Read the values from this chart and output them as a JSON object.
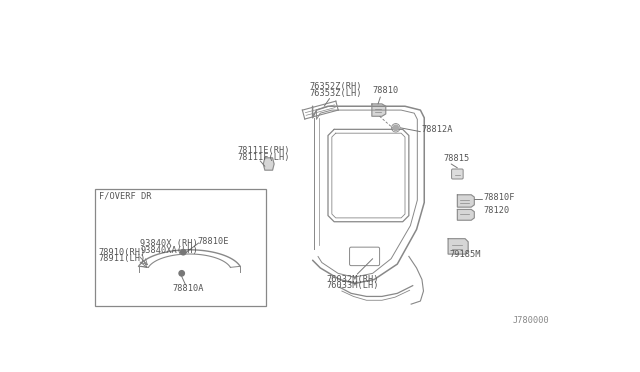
{
  "bg_color": "#ffffff",
  "diagram_number": "J780000",
  "text_color": "#555555",
  "line_color": "#777777",
  "part_color": "#888888",
  "labels": {
    "76352Z_RH": "76352Z(RH)",
    "76353Z_LH": "76353Z(LH)",
    "78810": "78810",
    "78812A": "78812A",
    "78815": "78815",
    "78810F": "78810F",
    "78120": "78120",
    "79185M": "79185M",
    "76032M_RH": "76032M(RH)",
    "76033M_LH": "76033M(LH)",
    "78111E_RH": "78111E(RH)",
    "78111F_LH": "78111F(LH)",
    "78810E": "78810E",
    "78910_RH": "78910(RH)",
    "78911_LH": "78911(LH)",
    "93840X_RH": "93840X (RH)",
    "93840XA_LH": "93840XA(LH)",
    "78810A": "78810A",
    "foverfdr": "F/OVERF DR"
  }
}
